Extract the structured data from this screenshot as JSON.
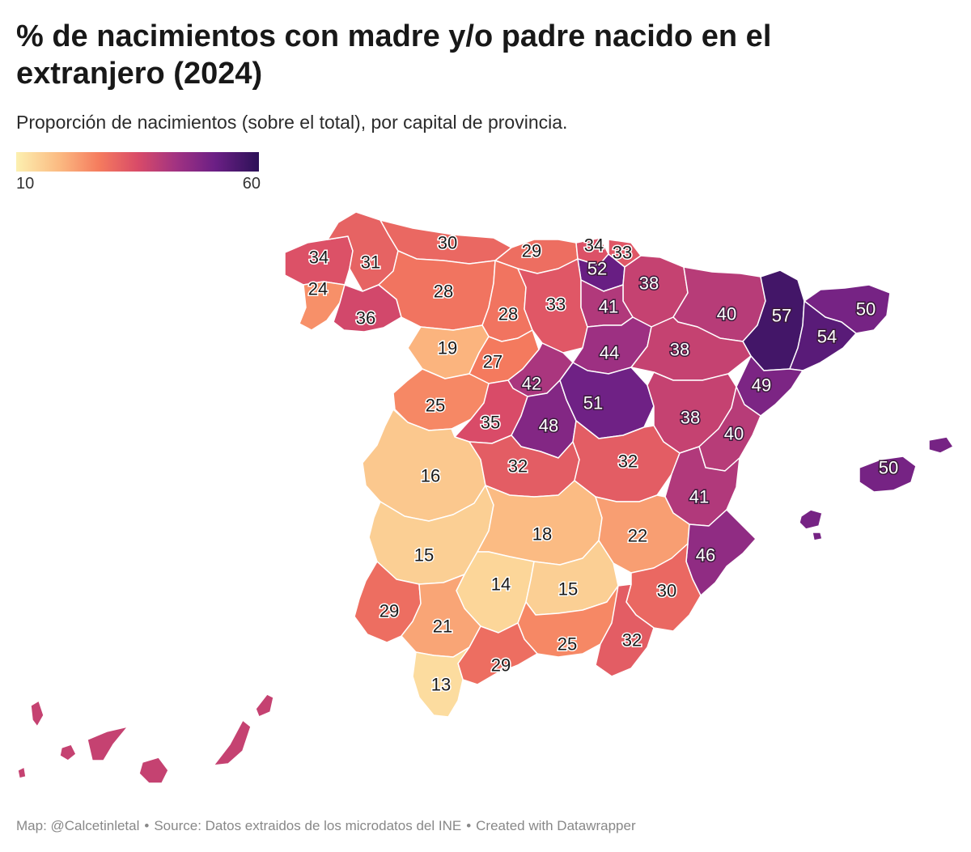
{
  "title": "% de nacimientos con madre y/o padre nacido en el extranjero (2024)",
  "subtitle": "Proporción de nacimientos (sobre el total), por capital de provincia.",
  "legend": {
    "min": 10,
    "max": 60,
    "min_label": "10",
    "max_label": "60",
    "colors": [
      "#fcf0b0",
      "#fbb981",
      "#f57c5e",
      "#d94b68",
      "#a13282",
      "#6b1f85",
      "#2c1157"
    ]
  },
  "footer": {
    "map_credit": "Map: @Calcetinletal",
    "source": "Source: Datos extraidos de los microdatos del INE",
    "tool": "Created with Datawrapper",
    "separator": "•"
  },
  "provinces": [
    {
      "name": "A Coruña",
      "value": 34
    },
    {
      "name": "Lugo",
      "value": 31
    },
    {
      "name": "Pontevedra",
      "value": 24
    },
    {
      "name": "Ourense",
      "value": 36
    },
    {
      "name": "Asturias",
      "value": 30
    },
    {
      "name": "Cantabria",
      "value": 29
    },
    {
      "name": "Bizkaia",
      "value": 34
    },
    {
      "name": "Gipuzkoa",
      "value": 33
    },
    {
      "name": "Araba",
      "value": 52
    },
    {
      "name": "Navarra",
      "value": 38
    },
    {
      "name": "León",
      "value": 28
    },
    {
      "name": "Palencia",
      "value": 28
    },
    {
      "name": "Burgos",
      "value": 33
    },
    {
      "name": "La Rioja",
      "value": 41
    },
    {
      "name": "Huesca",
      "value": 40
    },
    {
      "name": "Lleida",
      "value": 57
    },
    {
      "name": "Girona",
      "value": 50
    },
    {
      "name": "Barcelona",
      "value": 54
    },
    {
      "name": "Zamora",
      "value": 19
    },
    {
      "name": "Valladolid",
      "value": 27
    },
    {
      "name": "Soria",
      "value": 44
    },
    {
      "name": "Zaragoza",
      "value": 38
    },
    {
      "name": "Tarragona",
      "value": 49
    },
    {
      "name": "Segovia",
      "value": 42
    },
    {
      "name": "Salamanca",
      "value": 25
    },
    {
      "name": "Ávila",
      "value": 35
    },
    {
      "name": "Madrid",
      "value": 48
    },
    {
      "name": "Guadalajara",
      "value": 51
    },
    {
      "name": "Teruel",
      "value": 38
    },
    {
      "name": "Castellón",
      "value": 40
    },
    {
      "name": "Cáceres",
      "value": 16
    },
    {
      "name": "Toledo",
      "value": 32
    },
    {
      "name": "Cuenca",
      "value": 32
    },
    {
      "name": "Valencia",
      "value": 41
    },
    {
      "name": "Badajoz",
      "value": 15
    },
    {
      "name": "Ciudad Real",
      "value": 18
    },
    {
      "name": "Albacete",
      "value": 22
    },
    {
      "name": "Alicante",
      "value": 46
    },
    {
      "name": "Córdoba",
      "value": 14
    },
    {
      "name": "Jaén",
      "value": 15
    },
    {
      "name": "Murcia",
      "value": 30
    },
    {
      "name": "Huelva",
      "value": 29
    },
    {
      "name": "Sevilla",
      "value": 21
    },
    {
      "name": "Granada",
      "value": 25
    },
    {
      "name": "Almería",
      "value": 32
    },
    {
      "name": "Málaga",
      "value": 29
    },
    {
      "name": "Cádiz",
      "value": 13
    },
    {
      "name": "Illes Balears",
      "value": 50
    }
  ]
}
